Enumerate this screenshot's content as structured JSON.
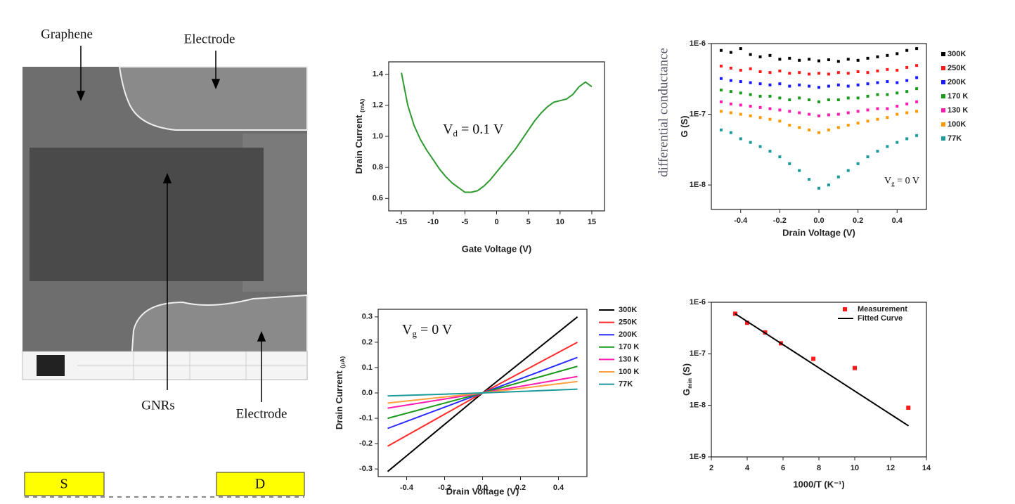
{
  "sem_figure": {
    "labels": {
      "graphene": "Graphene",
      "electrode_top": "Electrode",
      "gnrs": "GNRs",
      "electrode_bottom": "Electrode"
    },
    "source": "S",
    "drain": "D"
  },
  "chart_data": [
    {
      "type": "line",
      "x_label": "Gate Voltage (V)",
      "y_label": [
        {
          "text": "Drain Current "
        },
        {
          "sub": "(mA)"
        }
      ],
      "annotation": [
        {
          "text": "V"
        },
        {
          "sub": "d"
        },
        {
          "text": " = 0.1 V"
        }
      ],
      "xlim": [
        -17,
        17
      ],
      "xticks": [
        -15,
        -10,
        -5,
        0,
        5,
        10,
        15
      ],
      "ylim": [
        0.52,
        1.48
      ],
      "yticks": [
        0.6,
        0.8,
        {
          "value": 1.0,
          "label": "1.0"
        },
        1.2,
        1.4
      ],
      "series": [
        {
          "color": "#2e9a2e",
          "x": [
            -15,
            -14,
            -13,
            -12,
            -11,
            -10,
            -9,
            -8,
            -7,
            -6,
            -5,
            -4,
            -3,
            -2,
            -1,
            0,
            1,
            2,
            3,
            4,
            5,
            6,
            7,
            8,
            9,
            10,
            11,
            12,
            13,
            14,
            15
          ],
          "values": [
            1.41,
            1.2,
            1.07,
            0.98,
            0.91,
            0.85,
            0.79,
            0.74,
            0.7,
            0.67,
            0.64,
            0.64,
            0.65,
            0.68,
            0.72,
            0.77,
            0.82,
            0.87,
            0.92,
            0.98,
            1.04,
            1.1,
            1.15,
            1.19,
            1.22,
            1.23,
            1.24,
            1.27,
            1.32,
            1.35,
            1.32
          ]
        }
      ]
    },
    {
      "type": "scatter",
      "x_label": "Drain Voltage (V)",
      "y_label": [
        {
          "text": "G (S)"
        }
      ],
      "y_label_note": "differential conductance",
      "annotation": [
        {
          "text": "V"
        },
        {
          "sub": "g"
        },
        {
          "text": " = 0 V"
        }
      ],
      "log_y": true,
      "xlim": [
        -0.55,
        0.55
      ],
      "xticks": [
        -0.4,
        -0.2,
        {
          "value": 0,
          "label": "0.0"
        },
        0.2,
        0.4
      ],
      "ylim": [
        4.5e-09,
        1e-06
      ],
      "yticks": [
        {
          "value": 1e-06,
          "label": "1E-6"
        },
        {
          "value": 1e-07,
          "label": "1E-7"
        },
        {
          "value": 1e-08,
          "label": "1E-8"
        }
      ],
      "x": [
        -0.5,
        -0.45,
        -0.4,
        -0.35,
        -0.3,
        -0.25,
        -0.2,
        -0.15,
        -0.1,
        -0.05,
        0,
        0.05,
        0.1,
        0.15,
        0.2,
        0.25,
        0.3,
        0.35,
        0.4,
        0.45,
        0.5
      ],
      "series": [
        {
          "name": "300K",
          "color": "#000000",
          "values": [
            8e-07,
            7.5e-07,
            8.5e-07,
            7e-07,
            6.5e-07,
            6.8e-07,
            6e-07,
            6.2e-07,
            5.8e-07,
            6e-07,
            5.7e-07,
            5.9e-07,
            5.6e-07,
            6e-07,
            5.8e-07,
            6.2e-07,
            6.5e-07,
            6.8e-07,
            7.2e-07,
            8e-07,
            8.5e-07
          ]
        },
        {
          "name": "250K",
          "color": "#ff1a1a",
          "values": [
            4.8e-07,
            4.5e-07,
            4.2e-07,
            4.4e-07,
            4e-07,
            3.9e-07,
            4.1e-07,
            3.8e-07,
            3.9e-07,
            3.7e-07,
            3.8e-07,
            3.7e-07,
            3.9e-07,
            3.8e-07,
            4e-07,
            3.9e-07,
            4.1e-07,
            4.3e-07,
            4.2e-07,
            4.6e-07,
            4.9e-07
          ]
        },
        {
          "name": "200K",
          "color": "#1a1aff",
          "values": [
            3.2e-07,
            3e-07,
            2.9e-07,
            2.8e-07,
            2.7e-07,
            2.6e-07,
            2.7e-07,
            2.5e-07,
            2.6e-07,
            2.5e-07,
            2.4e-07,
            2.5e-07,
            2.6e-07,
            2.5e-07,
            2.6e-07,
            2.7e-07,
            2.8e-07,
            2.9e-07,
            2.8e-07,
            3e-07,
            3.3e-07
          ]
        },
        {
          "name": "170 K",
          "color": "#1a9a1a",
          "values": [
            2.2e-07,
            2.1e-07,
            2e-07,
            1.9e-07,
            1.8e-07,
            1.8e-07,
            1.7e-07,
            1.6e-07,
            1.7e-07,
            1.6e-07,
            1.5e-07,
            1.6e-07,
            1.6e-07,
            1.7e-07,
            1.7e-07,
            1.8e-07,
            1.9e-07,
            1.9e-07,
            2e-07,
            2.1e-07,
            2.3e-07
          ]
        },
        {
          "name": "130 K",
          "color": "#ff1ab0",
          "values": [
            1.5e-07,
            1.4e-07,
            1.35e-07,
            1.3e-07,
            1.25e-07,
            1.2e-07,
            1.15e-07,
            1.1e-07,
            1.05e-07,
            1e-07,
            9.5e-08,
            9.8e-08,
            1e-07,
            1.05e-07,
            1.1e-07,
            1.15e-07,
            1.2e-07,
            1.2e-07,
            1.3e-07,
            1.4e-07,
            1.5e-07
          ]
        },
        {
          "name": "100K",
          "color": "#ff9900",
          "values": [
            1.1e-07,
            1.05e-07,
            1e-07,
            9.5e-08,
            9e-08,
            8.5e-08,
            8e-08,
            7e-08,
            6.5e-08,
            6e-08,
            5.5e-08,
            6e-08,
            6.5e-08,
            7e-08,
            7.5e-08,
            8e-08,
            8.5e-08,
            9e-08,
            1e-07,
            1.05e-07,
            1.1e-07
          ]
        },
        {
          "name": "77K",
          "color": "#1a9a9a",
          "values": [
            6e-08,
            5.5e-08,
            4.5e-08,
            4e-08,
            3.5e-08,
            3e-08,
            2.5e-08,
            2e-08,
            1.6e-08,
            1.2e-08,
            9e-09,
            1e-08,
            1.3e-08,
            1.6e-08,
            2e-08,
            2.5e-08,
            3e-08,
            3.5e-08,
            4e-08,
            4.5e-08,
            5e-08
          ]
        }
      ]
    },
    {
      "type": "line",
      "x_label": "Drain Voltage (V)",
      "y_label": [
        {
          "text": "Drain Current "
        },
        {
          "sub": "(μA)"
        }
      ],
      "annotation": [
        {
          "text": "V"
        },
        {
          "sub": "g"
        },
        {
          "text": " = 0 V"
        }
      ],
      "xlim": [
        -0.55,
        0.55
      ],
      "xticks": [
        -0.4,
        -0.2,
        {
          "value": 0,
          "label": "0.0"
        },
        0.2,
        0.4
      ],
      "ylim": [
        -0.33,
        0.33
      ],
      "yticks": [
        -0.3,
        -0.2,
        -0.1,
        {
          "value": 0,
          "label": "0.0"
        },
        0.1,
        0.2,
        0.3
      ],
      "x": [
        -0.5,
        0,
        0.5
      ],
      "series": [
        {
          "name": "300K",
          "color": "#000000",
          "values": [
            -0.31,
            0,
            0.3
          ]
        },
        {
          "name": "250K",
          "color": "#ff2a2a",
          "values": [
            -0.21,
            0,
            0.2
          ]
        },
        {
          "name": "200K",
          "color": "#2a2aff",
          "values": [
            -0.14,
            0,
            0.14
          ]
        },
        {
          "name": "170 K",
          "color": "#1a9a1a",
          "values": [
            -0.1,
            0,
            0.105
          ]
        },
        {
          "name": "130 K",
          "color": "#ff1ab0",
          "values": [
            -0.06,
            0,
            0.065
          ]
        },
        {
          "name": "100 K",
          "color": "#ffa040",
          "values": [
            -0.04,
            0,
            0.045
          ]
        },
        {
          "name": "77K",
          "color": "#1a9a9a",
          "values": [
            -0.012,
            0,
            0.015
          ]
        }
      ]
    },
    {
      "type": "scatter",
      "x_label": "1000/T (K⁻¹)",
      "y_label": [
        {
          "text": "G"
        },
        {
          "sub": "min"
        },
        {
          "text": " (S)"
        }
      ],
      "log_y": true,
      "xlim": [
        2,
        14
      ],
      "xticks": [
        2,
        4,
        6,
        8,
        10,
        12,
        14
      ],
      "ylim": [
        1e-09,
        1e-06
      ],
      "yticks": [
        {
          "value": 1e-06,
          "label": "1E-6"
        },
        {
          "value": 1e-07,
          "label": "1E-7"
        },
        {
          "value": 1e-08,
          "label": "1E-8"
        },
        {
          "value": 1e-09,
          "label": "1E-9"
        }
      ],
      "series": [
        {
          "name": "Measurement",
          "color": "#ff1a1a",
          "mode": "markers",
          "x": [
            3.33,
            4,
            5,
            5.88,
            7.69,
            10,
            12.99
          ],
          "values": [
            6e-07,
            4e-07,
            2.6e-07,
            1.6e-07,
            8e-08,
            5.3e-08,
            9e-09
          ]
        },
        {
          "name": "Fitted Curve",
          "color": "#000000",
          "mode": "line",
          "x": [
            3.33,
            13
          ],
          "values": [
            6e-07,
            4e-09
          ]
        }
      ]
    }
  ]
}
